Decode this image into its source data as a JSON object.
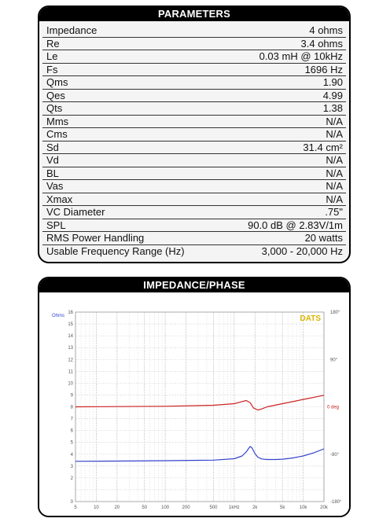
{
  "parameters": {
    "title": "PARAMETERS",
    "rows": [
      {
        "name": "Impedance",
        "value": "4 ohms"
      },
      {
        "name": "Re",
        "value": "3.4 ohms"
      },
      {
        "name": "Le",
        "value": "0.03 mH @ 10kHz"
      },
      {
        "name": "Fs",
        "value": "1696 Hz"
      },
      {
        "name": "Qms",
        "value": "1.90"
      },
      {
        "name": "Qes",
        "value": "4.99"
      },
      {
        "name": "Qts",
        "value": "1.38"
      },
      {
        "name": "Mms",
        "value": "N/A"
      },
      {
        "name": "Cms",
        "value": "N/A"
      },
      {
        "name": "Sd",
        "value": "31.4 cm²"
      },
      {
        "name": "Vd",
        "value": "N/A"
      },
      {
        "name": "BL",
        "value": "N/A"
      },
      {
        "name": "Vas",
        "value": "N/A"
      },
      {
        "name": "Xmax",
        "value": "N/A"
      },
      {
        "name": "VC Diameter",
        "value": ".75\""
      },
      {
        "name": "SPL",
        "value": "90.0 dB @ 2.83V/1m"
      },
      {
        "name": "RMS Power Handling",
        "value": "20 watts"
      },
      {
        "name": "Usable Frequency Range (Hz)",
        "value": "3,000 - 20,000 Hz"
      }
    ]
  },
  "impedance_panel": {
    "title": "IMPEDANCE/PHASE",
    "watermark": "DATS"
  },
  "chart_data": {
    "type": "line",
    "xscale": "log",
    "xlim": [
      5,
      20000
    ],
    "x_ticks": [
      "5",
      "10",
      "20",
      "50",
      "100",
      "200",
      "500",
      "1kHz",
      "2k",
      "5k",
      "10k",
      "20k"
    ],
    "x_tick_values": [
      5,
      10,
      20,
      50,
      100,
      200,
      500,
      1000,
      2000,
      5000,
      10000,
      20000
    ],
    "ylabel": "Ohms",
    "ylim": [
      0,
      16
    ],
    "y_ticks": [
      "0",
      "2",
      "3",
      "4",
      "5",
      "6",
      "7",
      "8",
      "9",
      "10",
      "11",
      "12",
      "13",
      "14",
      "15",
      "16"
    ],
    "y2_label": "deg",
    "y2lim": [
      -180,
      180
    ],
    "y2_ticks": [
      "180°",
      "90°",
      "0 deg",
      "-90°",
      "-180°"
    ],
    "grid": true,
    "series": [
      {
        "axis": "left",
        "color": "#3344cc",
        "x": [
          5,
          20,
          100,
          500,
          1000,
          1300,
          1500,
          1600,
          1696,
          1800,
          2000,
          2200,
          2500,
          3000,
          4000,
          5000,
          7000,
          10000,
          14000,
          20000
        ],
        "y": [
          3.4,
          3.42,
          3.45,
          3.5,
          3.62,
          3.85,
          4.2,
          4.45,
          4.65,
          4.55,
          4.05,
          3.75,
          3.6,
          3.55,
          3.55,
          3.58,
          3.68,
          3.85,
          4.1,
          4.45
        ]
      },
      {
        "axis": "right",
        "color": "#cc2222",
        "x": [
          5,
          100,
          500,
          1000,
          1300,
          1500,
          1696,
          1900,
          2200,
          2500,
          3000,
          5000,
          10000,
          20000
        ],
        "y": [
          0,
          1,
          3,
          6,
          10,
          12,
          8,
          -2,
          -6,
          -4,
          0,
          6,
          14,
          22
        ]
      }
    ]
  }
}
